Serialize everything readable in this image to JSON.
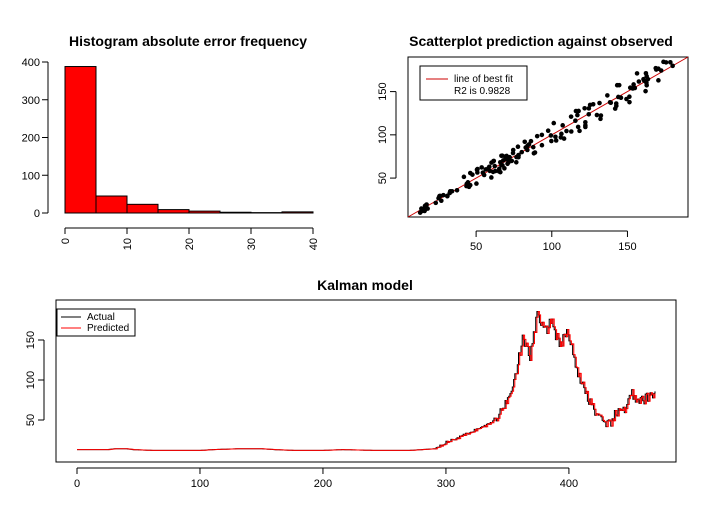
{
  "chart_data": [
    {
      "type": "bar",
      "title": "Histogram absolute error frequency",
      "xlabel": "",
      "ylabel": "",
      "bins": [
        {
          "from": 0,
          "to": 5,
          "count": 388
        },
        {
          "from": 5,
          "to": 10,
          "count": 45
        },
        {
          "from": 10,
          "to": 15,
          "count": 23
        },
        {
          "from": 15,
          "to": 20,
          "count": 9
        },
        {
          "from": 20,
          "to": 25,
          "count": 5
        },
        {
          "from": 25,
          "to": 30,
          "count": 2
        },
        {
          "from": 30,
          "to": 35,
          "count": 1
        },
        {
          "from": 35,
          "to": 40,
          "count": 3
        }
      ],
      "bar_color": "#ff0000",
      "xlim": [
        0,
        40
      ],
      "ylim": [
        0,
        400
      ],
      "xticks": [
        0,
        10,
        20,
        30,
        40
      ],
      "yticks": [
        0,
        100,
        200,
        300,
        400
      ],
      "grid": false
    },
    {
      "type": "scatter",
      "title": "Scatterplot prediction against observed",
      "xlabel": "",
      "ylabel": "",
      "xlim": [
        5,
        190
      ],
      "ylim": [
        5,
        190
      ],
      "xticks": [
        50,
        100,
        150
      ],
      "yticks": [
        50,
        100,
        150
      ],
      "point_color": "#000000",
      "fit_line": {
        "intercept": 0,
        "slope": 1,
        "color": "#cc0000"
      },
      "legend": {
        "position": "top-left",
        "entries": [
          "line of best fit",
          "R2 is 0.9828"
        ]
      },
      "grid": false
    },
    {
      "type": "line",
      "title": "Kalman model",
      "xlabel": "",
      "ylabel": "",
      "xlim": [
        0,
        470
      ],
      "ylim": [
        5,
        190
      ],
      "xticks": [
        0,
        100,
        200,
        300,
        400
      ],
      "yticks": [
        50,
        100,
        150
      ],
      "legend": {
        "position": "top-left"
      },
      "grid": false,
      "series": [
        {
          "name": "Actual",
          "color": "#000000"
        },
        {
          "name": "Predicted",
          "color": "#ff0000"
        }
      ],
      "keyframes": [
        [
          0,
          13
        ],
        [
          25,
          13
        ],
        [
          30,
          14
        ],
        [
          40,
          14
        ],
        [
          45,
          13
        ],
        [
          60,
          12
        ],
        [
          100,
          12
        ],
        [
          110,
          13
        ],
        [
          130,
          14
        ],
        [
          150,
          14
        ],
        [
          160,
          13
        ],
        [
          175,
          12
        ],
        [
          200,
          12
        ],
        [
          215,
          13
        ],
        [
          240,
          12
        ],
        [
          270,
          12
        ],
        [
          290,
          14
        ],
        [
          300,
          22
        ],
        [
          310,
          28
        ],
        [
          320,
          35
        ],
        [
          335,
          45
        ],
        [
          345,
          60
        ],
        [
          355,
          100
        ],
        [
          362,
          150
        ],
        [
          368,
          130
        ],
        [
          374,
          182
        ],
        [
          380,
          160
        ],
        [
          386,
          175
        ],
        [
          392,
          140
        ],
        [
          398,
          165
        ],
        [
          405,
          120
        ],
        [
          410,
          95
        ],
        [
          418,
          70
        ],
        [
          425,
          50
        ],
        [
          430,
          40
        ],
        [
          437,
          55
        ],
        [
          445,
          65
        ],
        [
          450,
          85
        ],
        [
          455,
          70
        ],
        [
          460,
          75
        ],
        [
          465,
          78
        ],
        [
          470,
          86
        ]
      ]
    }
  ]
}
